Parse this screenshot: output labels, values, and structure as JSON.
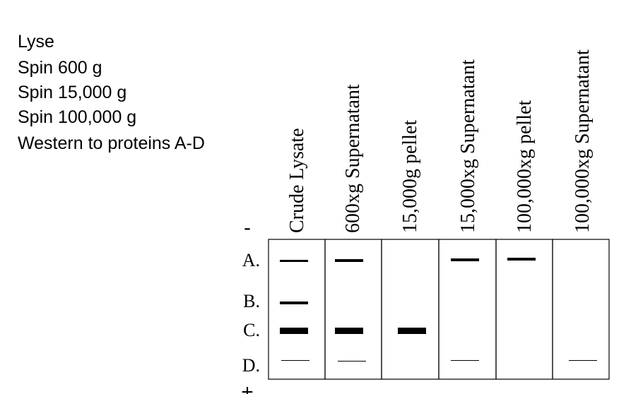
{
  "protocol": {
    "steps": [
      "Lyse",
      "Spin 600 g",
      "Spin 15,000 g",
      "Spin 100,000 g",
      "Western to proteins A-D"
    ]
  },
  "gel": {
    "lanes": [
      "Crude Lysate",
      "600xg Supernatant",
      "15,000g pellet",
      "15,000xg Supernatant",
      "100,000xg pellet",
      "100,000xg Supernatant"
    ],
    "rows": [
      "A.",
      "B.",
      "C.",
      "D."
    ],
    "top_pole": "-",
    "bottom_pole": "+"
  }
}
